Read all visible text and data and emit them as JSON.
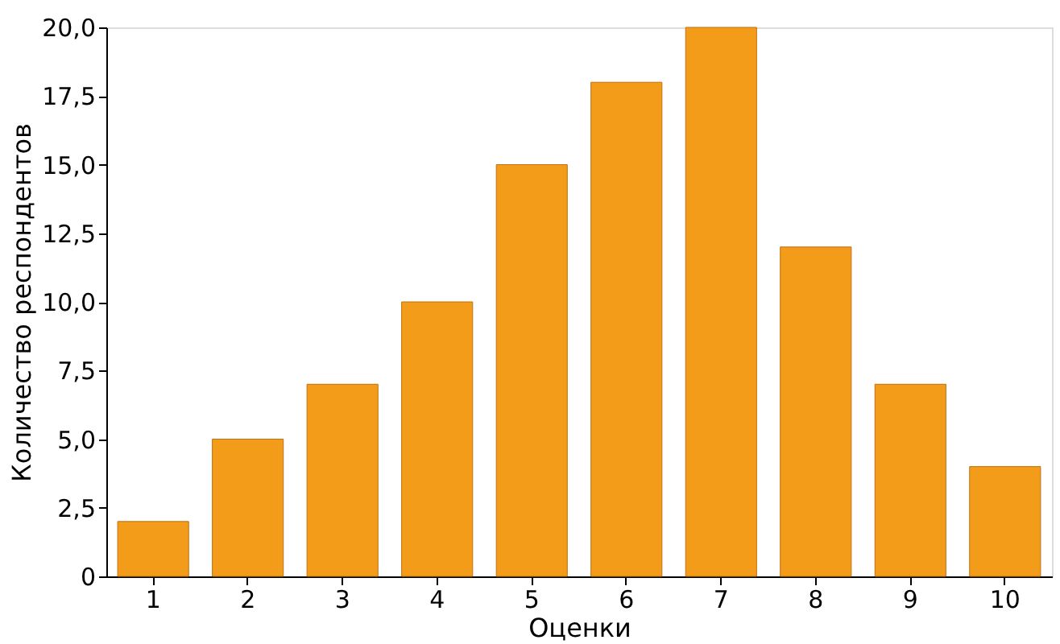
{
  "chart_data": {
    "type": "bar",
    "xlabel": "Оценки",
    "ylabel": "Количество респондентов",
    "categories": [
      "1",
      "2",
      "3",
      "4",
      "5",
      "6",
      "7",
      "8",
      "9",
      "10"
    ],
    "values": [
      2,
      5,
      7,
      10,
      15,
      18,
      20,
      12,
      7,
      4
    ],
    "color": "#f39c1a",
    "ylim": [
      0,
      20
    ],
    "yticks": [
      0,
      {
        "value": 2.5,
        "label": "2,5"
      },
      {
        "value": 5,
        "label": "5,0"
      },
      {
        "value": 7.5,
        "label": "7,5"
      },
      {
        "value": 10,
        "label": "10,0"
      },
      {
        "value": 12.5,
        "label": "12,5"
      },
      {
        "value": 15,
        "label": "15,0"
      },
      {
        "value": 17.5,
        "label": "17,5"
      },
      {
        "value": 20,
        "label": "20,0"
      }
    ],
    "grid": false
  }
}
